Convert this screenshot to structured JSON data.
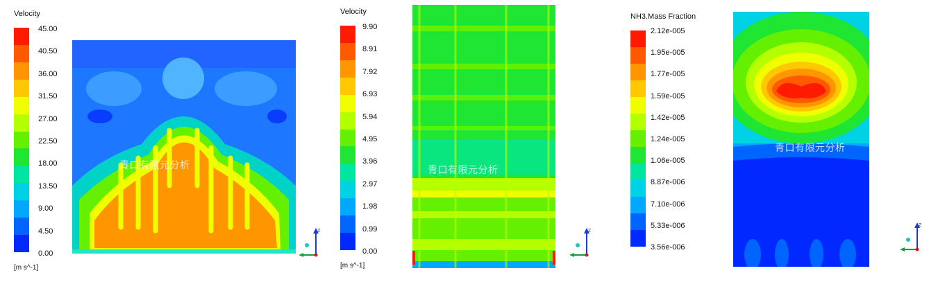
{
  "panels": [
    {
      "legend_title": "Velocity",
      "unit": "[m s^-1]",
      "ticks": [
        "45.00",
        "40.50",
        "36.00",
        "31.50",
        "27.00",
        "22.50",
        "18.00",
        "13.50",
        "9.00",
        "4.50",
        "0.00"
      ],
      "watermark": "青口有限元分析",
      "axis_label": "Z"
    },
    {
      "legend_title": "Velocity",
      "unit": "[m s^-1]",
      "ticks": [
        "9.90",
        "8.91",
        "7.92",
        "6.93",
        "5.94",
        "4.95",
        "3.96",
        "2.97",
        "1.98",
        "0.99",
        "0.00"
      ],
      "watermark": "青口有限元分析",
      "axis_label": "Z"
    },
    {
      "legend_title": "NH3.Mass Fraction",
      "unit": "",
      "ticks": [
        "2.12e-005",
        "1.95e-005",
        "1.77e-005",
        "1.59e-005",
        "1.42e-005",
        "1.24e-005",
        "1.06e-005",
        "8.87e-006",
        "7.10e-006",
        "5.33e-006",
        "3.56e-006"
      ],
      "watermark": "青口有限元分析",
      "axis_label": "Z"
    }
  ],
  "colormap": [
    "#ff1a00",
    "#ff5a00",
    "#ff9600",
    "#ffc800",
    "#f0ff00",
    "#b4ff00",
    "#64f000",
    "#1ee632",
    "#00e6a0",
    "#00d2e6",
    "#00a8ff",
    "#0064ff",
    "#0028ff"
  ]
}
